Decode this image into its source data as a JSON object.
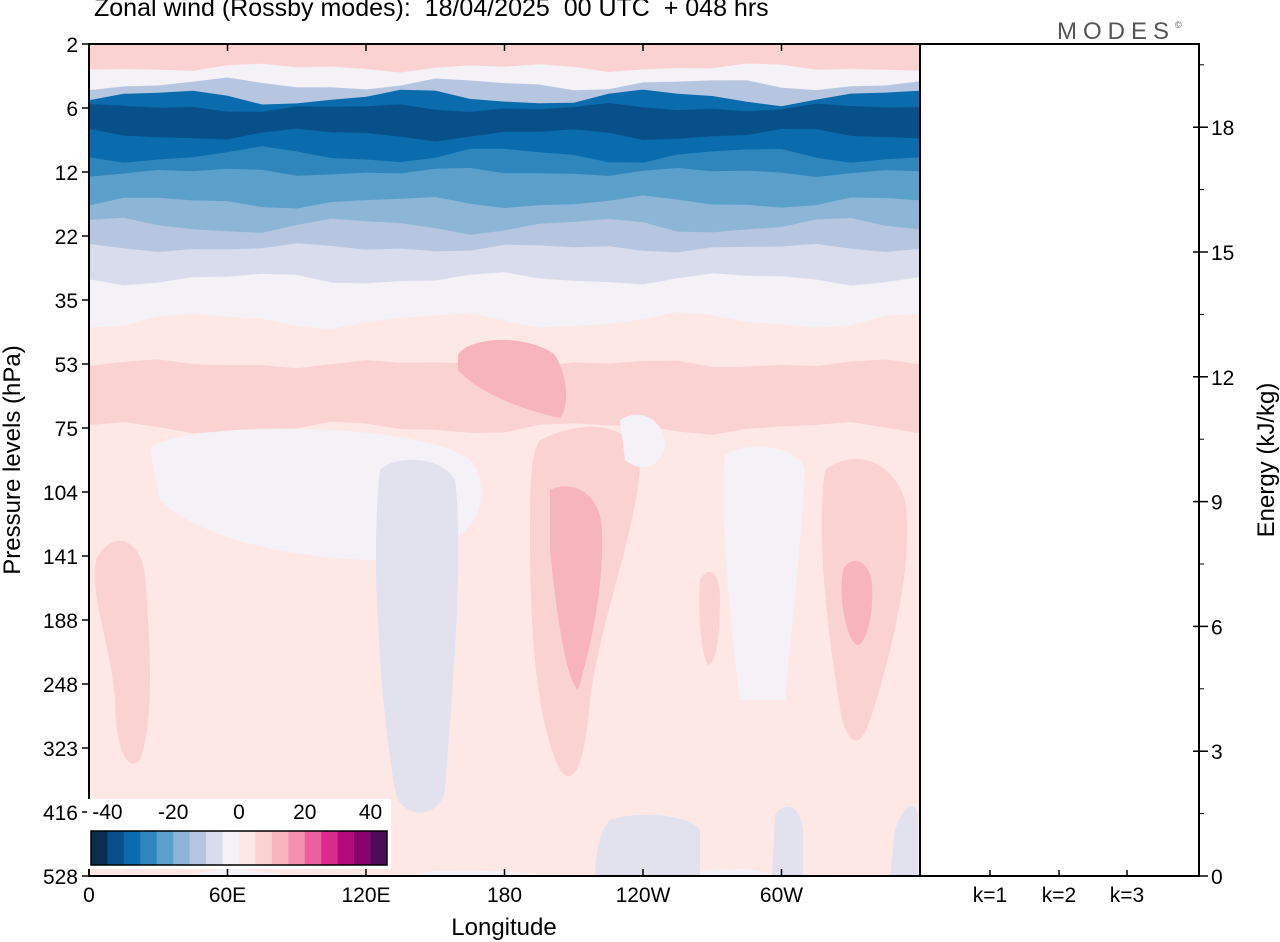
{
  "title": "Zonal wind (Rossby modes):  18/04/2025  00 UTC  + 048 hrs",
  "brand": "MODES",
  "brand_mark": "©",
  "chart_data": [
    {
      "type": "heatmap",
      "title": "Zonal wind (Rossby modes):  18/04/2025  00 UTC  + 048 hrs",
      "xlabel": "Longitude",
      "ylabel": "Pressure levels (hPa)",
      "x_ticks": [
        "0",
        "60E",
        "120E",
        "180",
        "120W",
        "60W"
      ],
      "y_ticks": [
        "2",
        "6",
        "12",
        "22",
        "35",
        "53",
        "75",
        "104",
        "141",
        "188",
        "248",
        "323",
        "416",
        "528"
      ],
      "xlim_deg_east": [
        0,
        360
      ],
      "ylim_hPa": [
        2,
        528
      ],
      "colorbar": {
        "ticks": [
          "-40",
          "-20",
          "0",
          "20",
          "40"
        ],
        "range": [
          -45,
          45
        ],
        "step": 5,
        "colors": [
          "#0a2e50",
          "#08508a",
          "#0a6cad",
          "#2e86bd",
          "#5b9fcb",
          "#8cb5d6",
          "#b7c6e0",
          "#d9dcec",
          "#f4f1f7",
          "#fde8e6",
          "#fbd2d2",
          "#f8b4bd",
          "#f590ae",
          "#ef5f9f",
          "#d92b8c",
          "#b40b7b",
          "#87046e",
          "#4d0b5c"
        ]
      },
      "contour_levels_m_s": [
        {
          "p_hPa": 2,
          "u": 7
        },
        {
          "p_hPa": 3,
          "u": -2
        },
        {
          "p_hPa": 4,
          "u": -12
        },
        {
          "p_hPa": 5,
          "u": -32
        },
        {
          "p_hPa": 6,
          "u": -37
        },
        {
          "p_hPa": 8,
          "u": -32
        },
        {
          "p_hPa": 10,
          "u": -26
        },
        {
          "p_hPa": 12,
          "u": -22
        },
        {
          "p_hPa": 16,
          "u": -17
        },
        {
          "p_hPa": 20,
          "u": -12
        },
        {
          "p_hPa": 24,
          "u": -7
        },
        {
          "p_hPa": 30,
          "u": -2
        },
        {
          "p_hPa": 40,
          "u": 3
        },
        {
          "p_hPa": 53,
          "u": 8
        },
        {
          "p_hPa": 75,
          "u": 3
        },
        {
          "p_hPa": 104,
          "u": 2
        },
        {
          "p_hPa": 141,
          "u": 2
        },
        {
          "p_hPa": 188,
          "u": 2
        },
        {
          "p_hPa": 248,
          "u": 1
        },
        {
          "p_hPa": 323,
          "u": 1
        },
        {
          "p_hPa": 416,
          "u": 0
        },
        {
          "p_hPa": 528,
          "u": -1
        }
      ]
    },
    {
      "type": "bar",
      "ylabel": "Energy (kJ/kg)",
      "categories": [
        "k=1",
        "k=2",
        "k=3"
      ],
      "values": [
        0.02,
        0.02,
        0.02
      ],
      "ylim": [
        0,
        20
      ],
      "y_ticks": [
        "0",
        "3",
        "6",
        "9",
        "12",
        "15",
        "18"
      ]
    }
  ]
}
